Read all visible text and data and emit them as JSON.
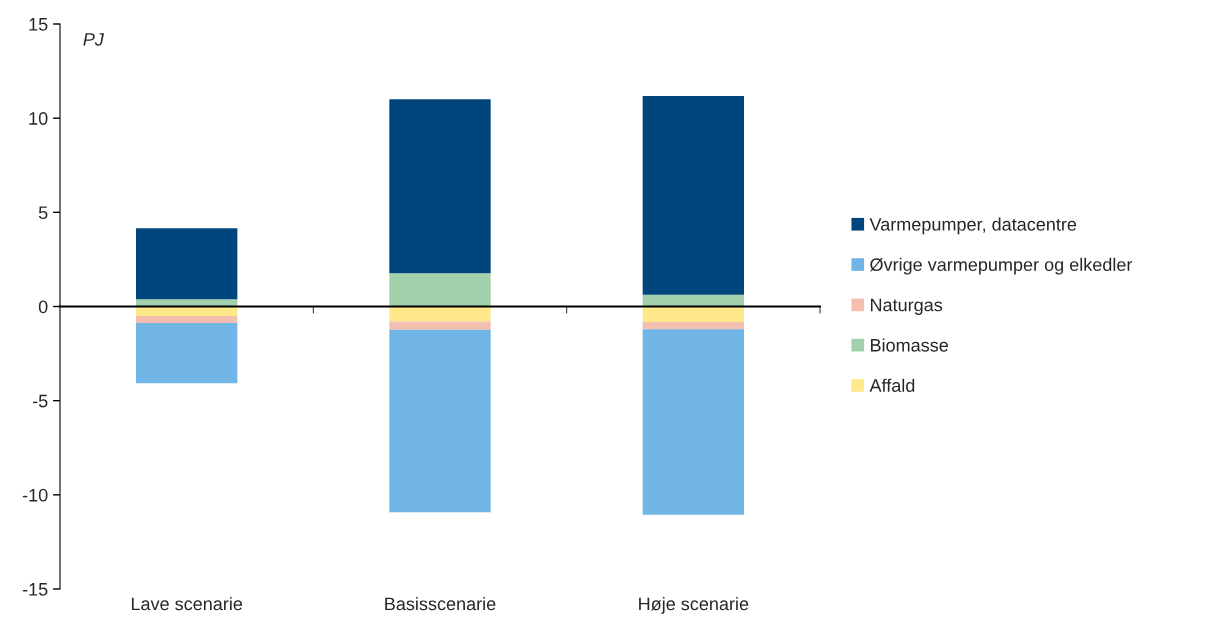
{
  "chart_data": {
    "type": "bar",
    "stacked": true,
    "ylabel": "PJ",
    "categories": [
      "Lave scenarie",
      "Basisscenarie",
      "Høje scenarie"
    ],
    "series": [
      {
        "name": "Affald",
        "color": "#ffe88a",
        "values": [
          -0.5,
          -0.8,
          -0.82
        ]
      },
      {
        "name": "Biomasse",
        "color": "#a2d0ac",
        "values": [
          0.38,
          1.76,
          0.63
        ]
      },
      {
        "name": "Naturgas",
        "color": "#f5bfb0",
        "values": [
          -0.37,
          -0.44,
          -0.39
        ]
      },
      {
        "name": "Øvrige varmepumper og elkedler",
        "color": "#71b4e6",
        "values": [
          -3.2,
          -9.68,
          -9.85
        ]
      },
      {
        "name": "Varmepumper, datacentre",
        "color": "#00457c",
        "values": [
          3.77,
          9.25,
          10.55
        ]
      }
    ],
    "ylim": [
      -15,
      15
    ],
    "yticks": [
      -15,
      -10,
      -5,
      0,
      5,
      10,
      15
    ],
    "legend": "right"
  }
}
